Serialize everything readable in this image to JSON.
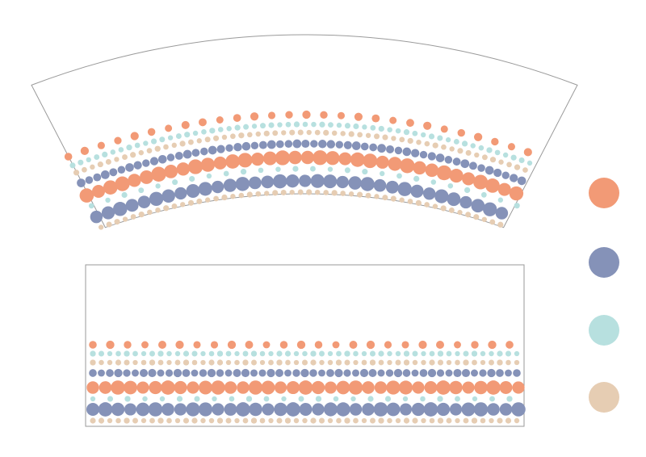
{
  "palette": {
    "orange": "#f29a76",
    "slate": "#8592b8",
    "aqua": "#b7e0df",
    "sand": "#e6cdb3"
  },
  "outline_color": "#9a9a9a",
  "swatches": [
    {
      "name": "orange-swatch",
      "color": "orange"
    },
    {
      "name": "slate-swatch",
      "color": "slate"
    },
    {
      "name": "aqua-swatch",
      "color": "aqua"
    },
    {
      "name": "sand-swatch",
      "color": "sand"
    }
  ],
  "dot_bands": [
    {
      "name": "orange-dot-row",
      "color": "orange",
      "size": "small",
      "spacing": "wide"
    },
    {
      "name": "aqua-dot-row",
      "color": "aqua",
      "size": "tiny",
      "spacing": "tight"
    },
    {
      "name": "sand-dot-row",
      "color": "sand",
      "size": "tiny",
      "spacing": "tight"
    },
    {
      "name": "slate-dot-row",
      "color": "slate",
      "size": "small",
      "spacing": "tight"
    },
    {
      "name": "orange-bead-row",
      "color": "orange",
      "size": "large",
      "spacing": "packed"
    },
    {
      "name": "aqua-sparse-dot-row",
      "color": "aqua",
      "size": "tiny",
      "spacing": "wide"
    },
    {
      "name": "slate-bead-row",
      "color": "slate",
      "size": "large",
      "spacing": "packed"
    },
    {
      "name": "sand-bottom-dot-row",
      "color": "sand",
      "size": "tiny",
      "spacing": "tight"
    }
  ]
}
